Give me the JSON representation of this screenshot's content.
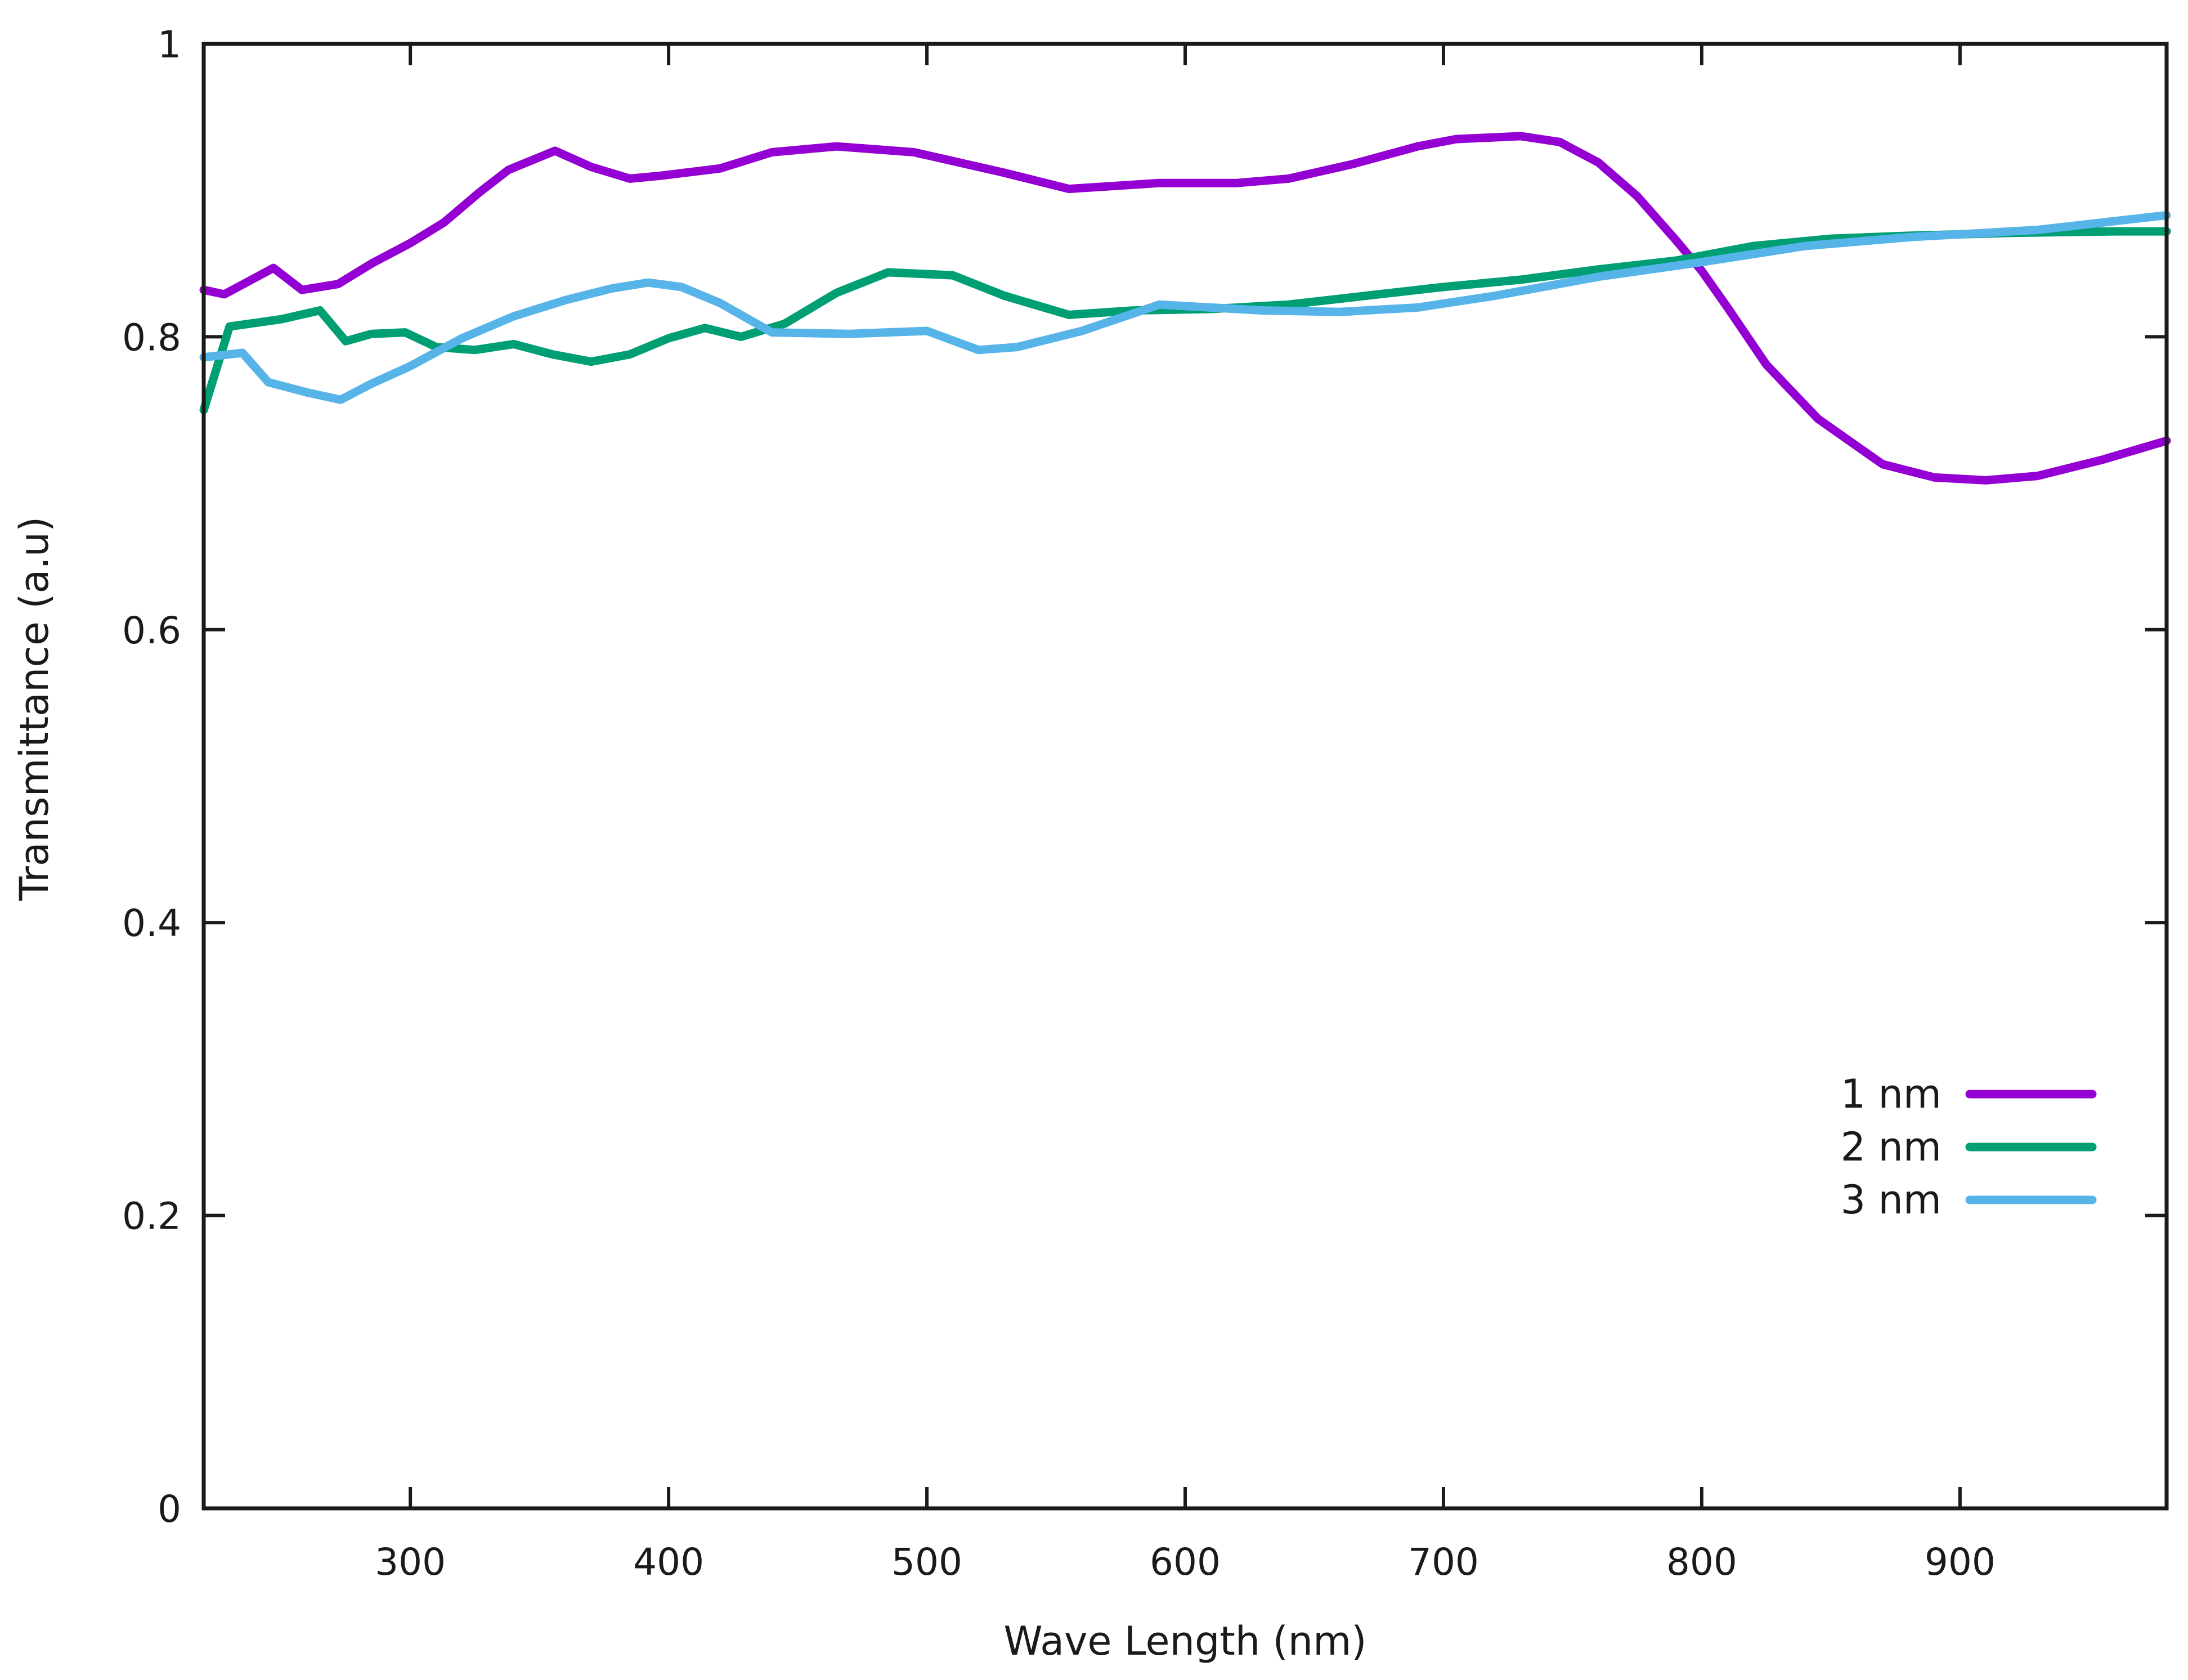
{
  "chart_data": {
    "type": "line",
    "title": "",
    "xlabel": "Wave Length (nm)",
    "ylabel": "Transmittance (a.u)",
    "xlim": [
      220,
      980
    ],
    "ylim": [
      0,
      1
    ],
    "xticks": [
      300,
      400,
      500,
      600,
      700,
      800,
      900
    ],
    "yticks": [
      0,
      0.2,
      0.4,
      0.6,
      0.8,
      1
    ],
    "ytick_labels": [
      "0",
      "0.2",
      "0.4",
      "0.6",
      "0.8",
      "1"
    ],
    "grid": false,
    "legend_position": "bottom-right",
    "series": [
      {
        "name": "1 nm",
        "color": "#9400D3",
        "x": [
          220,
          228,
          247,
          258,
          272,
          285,
          300,
          313,
          327,
          338,
          356,
          370,
          385,
          397,
          420,
          440,
          465,
          495,
          530,
          555,
          590,
          620,
          640,
          665,
          690,
          705,
          730,
          745,
          760,
          775,
          790,
          800,
          810,
          825,
          845,
          870,
          890,
          910,
          930,
          955,
          980
        ],
        "y": [
          0.832,
          0.829,
          0.847,
          0.832,
          0.836,
          0.85,
          0.864,
          0.878,
          0.899,
          0.914,
          0.927,
          0.916,
          0.908,
          0.91,
          0.915,
          0.926,
          0.93,
          0.926,
          0.912,
          0.901,
          0.905,
          0.905,
          0.908,
          0.918,
          0.93,
          0.935,
          0.937,
          0.933,
          0.919,
          0.896,
          0.866,
          0.845,
          0.82,
          0.781,
          0.744,
          0.713,
          0.704,
          0.702,
          0.705,
          0.716,
          0.729
        ]
      },
      {
        "name": "2 nm",
        "color": "#009E73",
        "x": [
          220,
          230,
          250,
          265,
          275,
          285,
          298,
          310,
          325,
          340,
          355,
          370,
          385,
          400,
          414,
          428,
          445,
          465,
          485,
          510,
          530,
          555,
          580,
          610,
          640,
          670,
          700,
          730,
          760,
          790,
          820,
          850,
          880,
          920,
          960,
          980
        ],
        "y": [
          0.75,
          0.807,
          0.812,
          0.818,
          0.797,
          0.802,
          0.803,
          0.793,
          0.791,
          0.795,
          0.788,
          0.783,
          0.788,
          0.799,
          0.806,
          0.8,
          0.809,
          0.83,
          0.844,
          0.842,
          0.828,
          0.815,
          0.818,
          0.819,
          0.822,
          0.828,
          0.834,
          0.839,
          0.846,
          0.852,
          0.862,
          0.867,
          0.869,
          0.871,
          0.872,
          0.872
        ]
      },
      {
        "name": "3 nm",
        "color": "#56B4E9",
        "x": [
          220,
          235,
          245,
          260,
          273,
          285,
          300,
          320,
          340,
          360,
          378,
          392,
          405,
          420,
          440,
          470,
          500,
          520,
          535,
          560,
          590,
          630,
          660,
          690,
          720,
          760,
          800,
          840,
          880,
          930,
          980
        ],
        "y": [
          0.786,
          0.789,
          0.769,
          0.762,
          0.757,
          0.768,
          0.78,
          0.799,
          0.814,
          0.825,
          0.833,
          0.837,
          0.834,
          0.823,
          0.803,
          0.802,
          0.804,
          0.791,
          0.793,
          0.804,
          0.822,
          0.818,
          0.817,
          0.82,
          0.828,
          0.841,
          0.851,
          0.862,
          0.868,
          0.873,
          0.883
        ]
      }
    ]
  }
}
